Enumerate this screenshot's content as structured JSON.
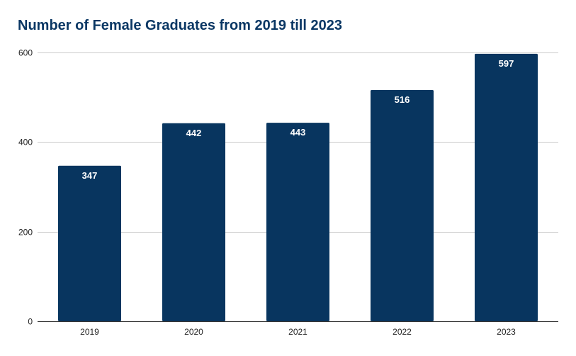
{
  "chart_data": {
    "type": "bar",
    "title": "Number of Female Graduates from 2019 till 2023",
    "xlabel": "",
    "ylabel": "",
    "categories": [
      "2019",
      "2020",
      "2021",
      "2022",
      "2023"
    ],
    "values": [
      347,
      442,
      443,
      516,
      597
    ],
    "data_labels": [
      "347",
      "442",
      "443",
      "516",
      "597"
    ],
    "ylim": [
      0,
      600
    ],
    "yticks": [
      0,
      200,
      400,
      600
    ],
    "ytick_labels": [
      "0",
      "200",
      "400",
      "600"
    ],
    "grid": true,
    "legend": "none",
    "colors": {
      "bar": "#08355f",
      "title": "#0a3764",
      "grid": "#cccccc",
      "axis": "#333333",
      "label": "#ffffff"
    }
  }
}
